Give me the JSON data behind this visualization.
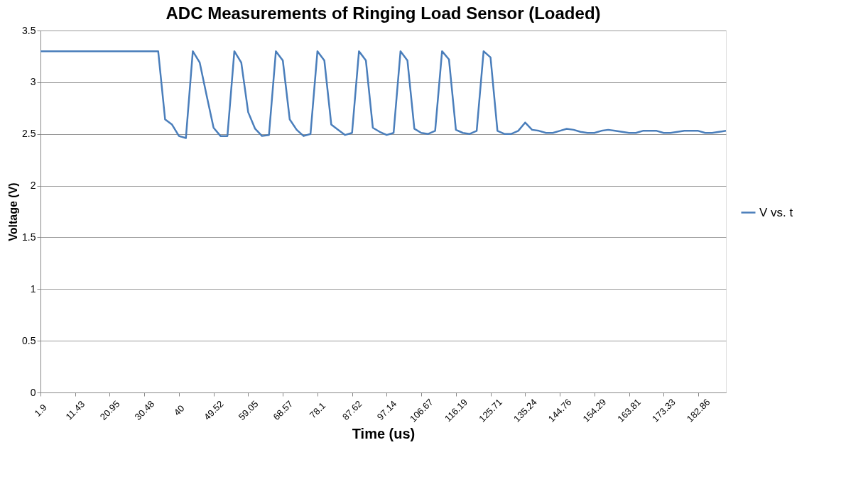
{
  "chart_data": {
    "type": "line",
    "title": "ADC Measurements of Ringing Load Sensor (Loaded)",
    "xlabel": "Time (us)",
    "ylabel": "Voltage (V)",
    "categories": [
      "1.9",
      null,
      null,
      null,
      null,
      "11.43",
      null,
      null,
      null,
      null,
      "20.95",
      null,
      null,
      null,
      null,
      "30.48",
      null,
      null,
      null,
      null,
      "40",
      null,
      null,
      null,
      null,
      "49.52",
      null,
      null,
      null,
      null,
      "59.05",
      null,
      null,
      null,
      null,
      "68.57",
      null,
      null,
      null,
      null,
      "78.1",
      null,
      null,
      null,
      null,
      "87.62",
      null,
      null,
      null,
      null,
      "97.14",
      null,
      null,
      null,
      null,
      "106.67",
      null,
      null,
      null,
      null,
      "116.19",
      null,
      null,
      null,
      null,
      "125.71",
      null,
      null,
      null,
      null,
      "135.24",
      null,
      null,
      null,
      null,
      "144.76",
      null,
      null,
      null,
      null,
      "154.29",
      null,
      null,
      null,
      null,
      "163.81",
      null,
      null,
      null,
      null,
      "173.33",
      null,
      null,
      null,
      null,
      "182.86",
      null,
      null,
      null,
      null
    ],
    "series": [
      {
        "name": "V vs. t",
        "color": "#4a7ebb",
        "values": [
          3.3,
          3.3,
          3.3,
          3.3,
          3.3,
          3.3,
          3.3,
          3.3,
          3.3,
          3.3,
          3.3,
          3.3,
          3.3,
          3.3,
          3.3,
          3.3,
          3.3,
          3.3,
          2.64,
          2.59,
          2.48,
          2.46,
          3.3,
          3.19,
          2.87,
          2.56,
          2.48,
          2.48,
          3.3,
          3.19,
          2.71,
          2.55,
          2.48,
          2.49,
          3.3,
          3.21,
          2.64,
          2.54,
          2.48,
          2.5,
          3.3,
          3.21,
          2.59,
          2.54,
          2.49,
          2.51,
          3.3,
          3.21,
          2.56,
          2.52,
          2.49,
          2.51,
          3.3,
          3.21,
          2.55,
          2.51,
          2.5,
          2.53,
          3.3,
          3.22,
          2.54,
          2.51,
          2.5,
          2.53,
          3.3,
          3.24,
          2.53,
          2.5,
          2.5,
          2.53,
          2.61,
          2.54,
          2.53,
          2.51,
          2.51,
          2.53,
          2.55,
          2.54,
          2.52,
          2.51,
          2.51,
          2.53,
          2.54,
          2.53,
          2.52,
          2.51,
          2.51,
          2.53,
          2.53,
          2.53,
          2.51,
          2.51,
          2.52,
          2.53,
          2.53,
          2.53,
          2.51,
          2.51,
          2.52,
          2.53
        ]
      }
    ],
    "ylim": [
      0,
      3.5
    ],
    "yticks": [
      0,
      0.5,
      1,
      1.5,
      2,
      2.5,
      3,
      3.5
    ],
    "grid": "y",
    "legend": "right"
  }
}
